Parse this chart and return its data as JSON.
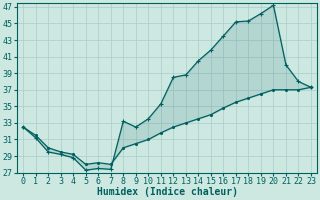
{
  "xlabel": "Humidex (Indice chaleur)",
  "background_color": "#cce8e0",
  "grid_color": "#aacccc",
  "line_color": "#006060",
  "xlim": [
    -0.5,
    23.5
  ],
  "ylim": [
    27,
    47.5
  ],
  "yticks": [
    27,
    29,
    31,
    33,
    35,
    37,
    39,
    41,
    43,
    45,
    47
  ],
  "xticks": [
    0,
    1,
    2,
    3,
    4,
    5,
    6,
    7,
    8,
    9,
    10,
    11,
    12,
    13,
    14,
    15,
    16,
    17,
    18,
    19,
    20,
    21,
    22,
    23
  ],
  "series_main_x": [
    0,
    1,
    2,
    3,
    4,
    5,
    6,
    7,
    8,
    9,
    10,
    11,
    12,
    13,
    14,
    15,
    16,
    17,
    18,
    19,
    20,
    21,
    22,
    23
  ],
  "series_main_y": [
    32.5,
    31.2,
    29.5,
    29.2,
    28.8,
    27.3,
    27.5,
    27.4,
    33.2,
    32.5,
    33.5,
    35.3,
    38.5,
    38.8,
    40.5,
    41.8,
    43.5,
    45.2,
    45.3,
    46.2,
    47.2,
    40.0,
    38.0,
    37.3
  ],
  "series_low_x": [
    0,
    1,
    2,
    3,
    4,
    5,
    6,
    7,
    8,
    9,
    10,
    11,
    12,
    13,
    14,
    15,
    16,
    17,
    18,
    19,
    20,
    21,
    22,
    23
  ],
  "series_low_y": [
    32.5,
    31.5,
    30.0,
    29.5,
    29.2,
    28.0,
    28.2,
    28.0,
    30.0,
    30.5,
    31.0,
    31.8,
    32.5,
    33.0,
    33.5,
    34.0,
    34.8,
    35.5,
    36.0,
    36.5,
    37.0,
    37.0,
    37.0,
    37.3
  ],
  "xlabel_fontsize": 7,
  "tick_fontsize": 6
}
